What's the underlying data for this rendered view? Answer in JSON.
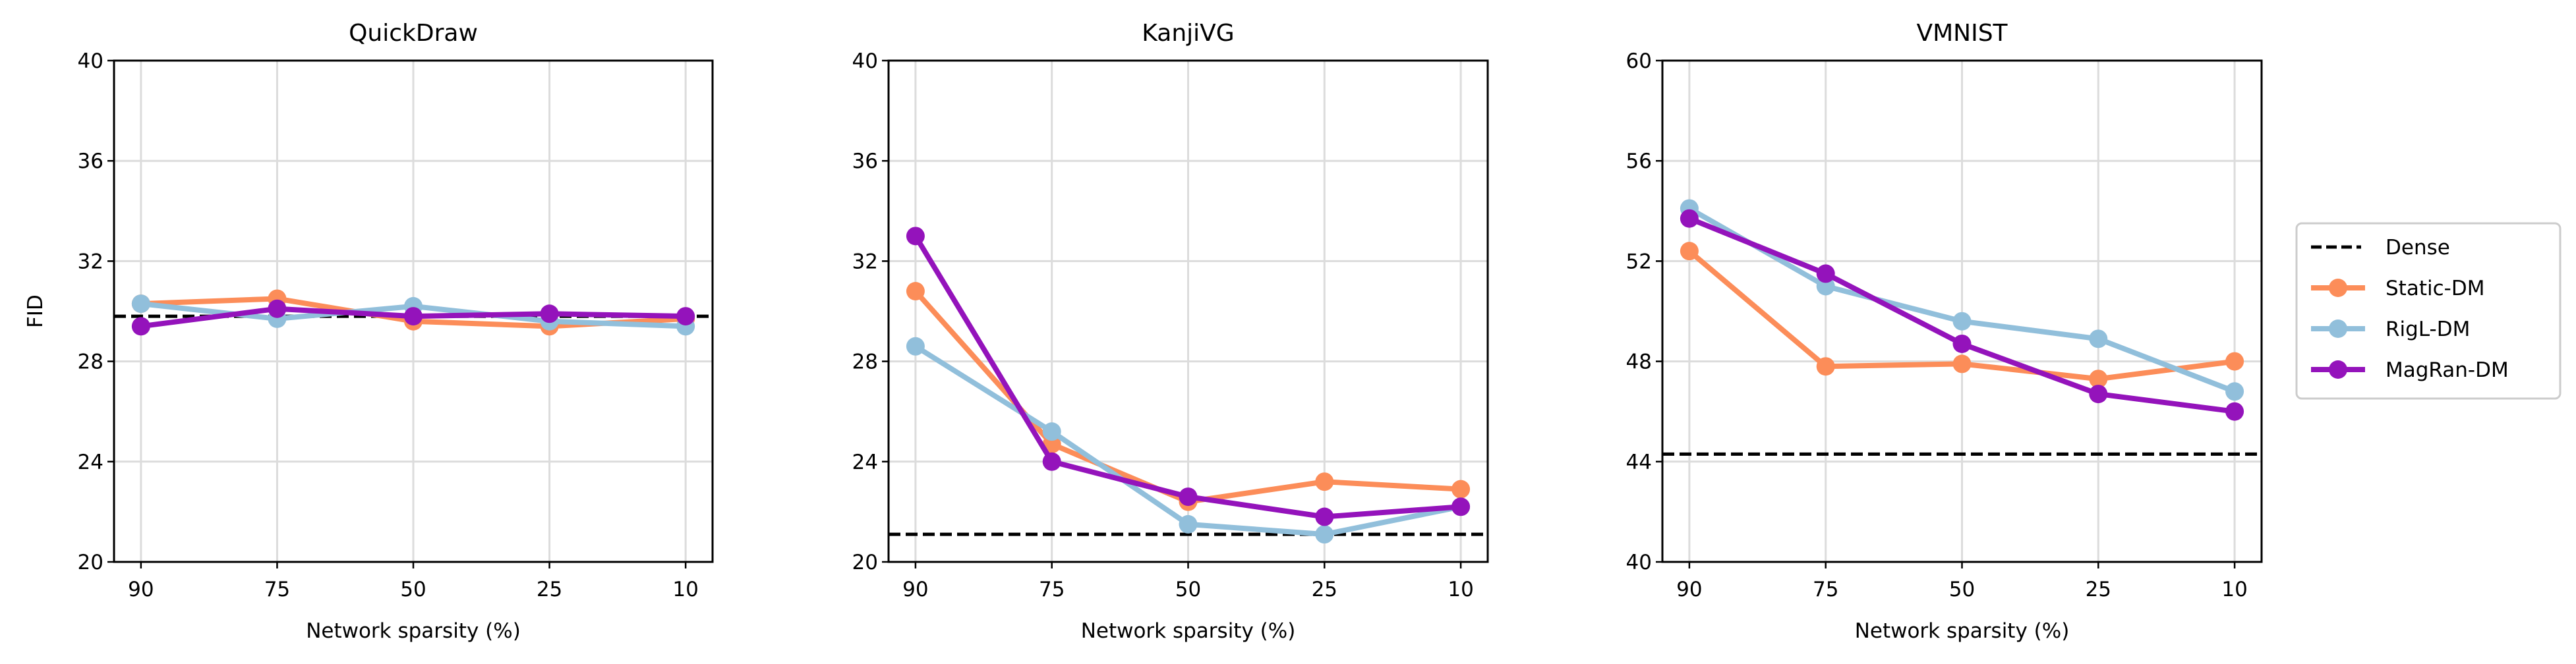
{
  "chart_data": {
    "type": "line",
    "legend": {
      "placement": "right",
      "entries": [
        "Dense",
        "Static-DM",
        "RigL-DM",
        "MagRan-DM"
      ]
    },
    "colors": {
      "Dense": "#000000",
      "Static-DM": "#fc8d59",
      "RigL-DM": "#91bfdb",
      "MagRan-DM": "#9413bb"
    },
    "panels": [
      {
        "title": "QuickDraw",
        "xlabel": "Network sparsity (%)",
        "ylabel": "FID",
        "categories": [
          "90",
          "75",
          "50",
          "25",
          "10"
        ],
        "ylim": [
          20,
          40
        ],
        "yticks": [
          "20",
          "24",
          "28",
          "32",
          "36",
          "40"
        ],
        "grid": true,
        "dense": 29.8,
        "series": [
          {
            "name": "Static-DM",
            "values": [
              30.3,
              30.5,
              29.6,
              29.4,
              29.7
            ]
          },
          {
            "name": "RigL-DM",
            "values": [
              30.3,
              29.7,
              30.2,
              29.6,
              29.4
            ]
          },
          {
            "name": "MagRan-DM",
            "values": [
              29.4,
              30.1,
              29.8,
              29.9,
              29.8
            ]
          }
        ]
      },
      {
        "title": "KanjiVG",
        "xlabel": "Network sparsity (%)",
        "ylabel": "",
        "categories": [
          "90",
          "75",
          "50",
          "25",
          "10"
        ],
        "ylim": [
          20,
          40
        ],
        "yticks": [
          "20",
          "24",
          "28",
          "32",
          "36",
          "40"
        ],
        "grid": true,
        "dense": 21.1,
        "series": [
          {
            "name": "Static-DM",
            "values": [
              30.8,
              24.7,
              22.4,
              23.2,
              22.9
            ]
          },
          {
            "name": "RigL-DM",
            "values": [
              28.6,
              25.2,
              21.5,
              21.1,
              22.2
            ]
          },
          {
            "name": "MagRan-DM",
            "values": [
              33.0,
              24.0,
              22.6,
              21.8,
              22.2
            ]
          }
        ]
      },
      {
        "title": "VMNIST",
        "xlabel": "Network sparsity (%)",
        "ylabel": "",
        "categories": [
          "90",
          "75",
          "50",
          "25",
          "10"
        ],
        "ylim": [
          40,
          60
        ],
        "yticks": [
          "40",
          "44",
          "48",
          "52",
          "56",
          "60"
        ],
        "grid": true,
        "dense": 44.3,
        "series": [
          {
            "name": "Static-DM",
            "values": [
              52.4,
              47.8,
              47.9,
              47.3,
              48.0
            ]
          },
          {
            "name": "RigL-DM",
            "values": [
              54.1,
              51.0,
              49.6,
              48.9,
              46.8
            ]
          },
          {
            "name": "MagRan-DM",
            "values": [
              53.7,
              51.5,
              48.7,
              46.7,
              46.0
            ]
          }
        ]
      }
    ]
  }
}
